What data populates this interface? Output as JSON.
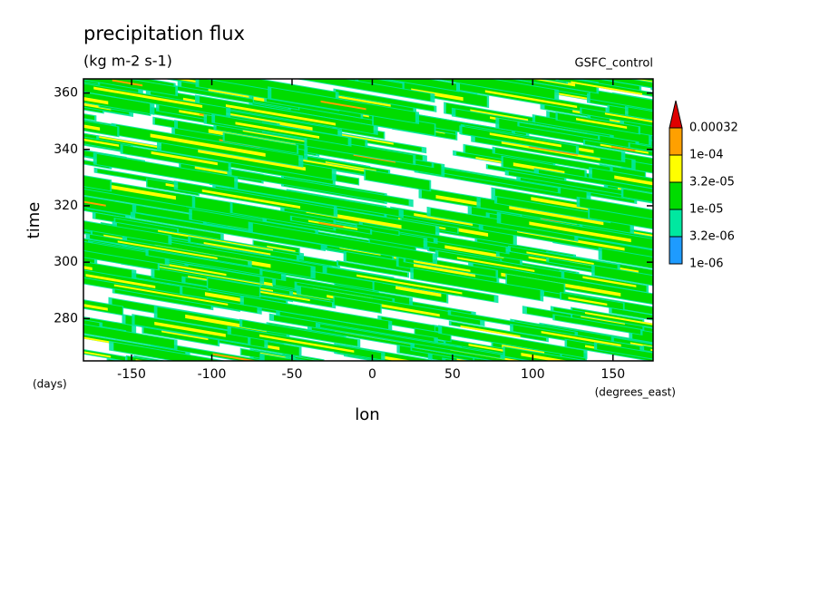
{
  "chart_data": {
    "type": "contour",
    "title": "precipitation flux",
    "subtitle": "(kg m-2 s-1)",
    "annotation": "GSFC_control",
    "x_label": "lon",
    "y_label": "time",
    "x_units": "(degrees_east)",
    "y_units": "(days)",
    "xlim": [
      -180,
      175
    ],
    "ylim": [
      265,
      365
    ],
    "xticks": [
      -150,
      -100,
      -50,
      0,
      50,
      100,
      150
    ],
    "yticks": [
      280,
      300,
      320,
      340,
      360
    ],
    "colorbar": {
      "levels": [
        {
          "value": 1e-06,
          "label": "1e-06"
        },
        {
          "value": 3.2e-06,
          "label": "3.2e-06"
        },
        {
          "value": 1e-05,
          "label": "1e-05"
        },
        {
          "value": 3.2e-05,
          "label": "3.2e-05"
        },
        {
          "value": 0.0001,
          "label": "1e-04"
        },
        {
          "value": 0.00032,
          "label": "0.00032"
        }
      ],
      "colors": [
        "#1e9bff",
        "#00e8a0",
        "#00dc00",
        "#ffff00",
        "#ffa000",
        "#e00000"
      ]
    }
  }
}
